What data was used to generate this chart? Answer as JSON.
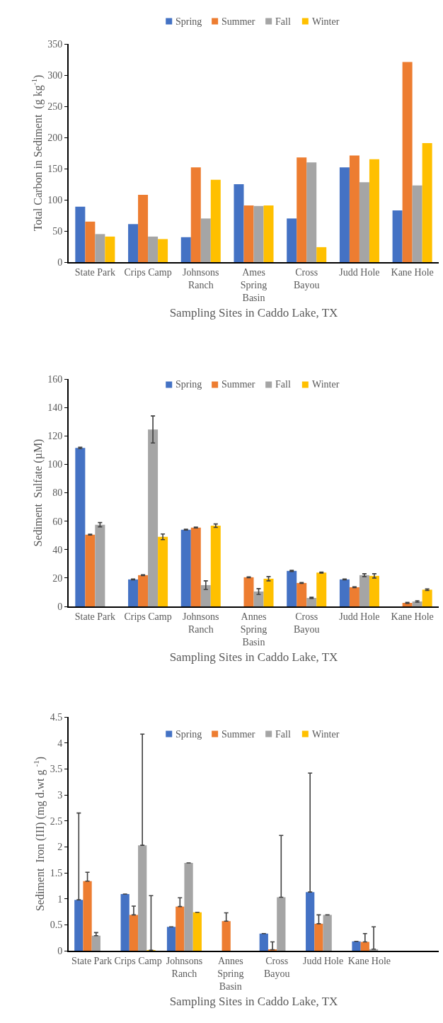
{
  "chart_data": [
    {
      "type": "bar",
      "xlabel": "Sampling Sites in Caddo Lake, TX",
      "ylabel": "Total Carbon in Sediment  (g kg$^{-1}$)",
      "categories": [
        "State Park",
        "Crips Camp",
        "Johnsons Ranch",
        "Ames Spring Basin",
        "Cross Bayou",
        "Judd Hole",
        "Kane Hole"
      ],
      "series": [
        {
          "name": "Spring",
          "color": "#4472c4",
          "values": [
            89,
            61,
            40,
            125,
            70,
            152,
            83
          ]
        },
        {
          "name": "Summer",
          "color": "#ed7d31",
          "values": [
            65,
            108,
            152,
            91,
            168,
            171,
            321
          ]
        },
        {
          "name": "Fall",
          "color": "#a5a5a5",
          "values": [
            45,
            41,
            70,
            90,
            160,
            128,
            123
          ]
        },
        {
          "name": "Winter",
          "color": "#ffc000",
          "values": [
            41,
            37,
            132,
            91,
            24,
            165,
            191
          ]
        }
      ],
      "ylim": [
        0,
        350
      ],
      "yticks": [
        0,
        50,
        100,
        150,
        200,
        250,
        300,
        350
      ],
      "grid": false,
      "legend": "top"
    },
    {
      "type": "bar",
      "xlabel": "Sampling Sites in Caddo Lake, TX",
      "ylabel": "Sediment  Sulfate (µM)",
      "categories": [
        "State Park",
        "Crips Camp",
        "Johnsons Ranch",
        "Annes Spring Basin",
        "Cross Bayou",
        "Judd Hole",
        "Kane Hole"
      ],
      "series": [
        {
          "name": "Spring",
          "color": "#4472c4",
          "values": [
            111.5,
            19,
            54,
            null,
            25,
            19,
            null
          ],
          "errors": [
            0.5,
            0.3,
            0.3,
            null,
            0.4,
            0.3,
            null
          ]
        },
        {
          "name": "Summer",
          "color": "#ed7d31",
          "values": [
            50.5,
            22,
            55.5,
            20.5,
            16.5,
            13.5,
            2.5
          ],
          "errors": [
            0.3,
            0.3,
            0.3,
            0.3,
            0.3,
            0.3,
            0.3
          ]
        },
        {
          "name": "Fall",
          "color": "#a5a5a5",
          "values": [
            57.5,
            124.5,
            15,
            10.5,
            6,
            22,
            3.5
          ],
          "errors": [
            1.5,
            9.5,
            3,
            2,
            0.4,
            1,
            0.5
          ]
        },
        {
          "name": "Winter",
          "color": "#ffc000",
          "values": [
            null,
            49,
            56.8,
            19.5,
            23.8,
            21.5,
            11.8
          ],
          "errors": [
            null,
            2,
            1.2,
            1.5,
            0.3,
            1.5,
            0.5
          ]
        }
      ],
      "ylim": [
        0,
        160
      ],
      "yticks": [
        0,
        20,
        40,
        60,
        80,
        100,
        120,
        140,
        160
      ],
      "grid": false,
      "legend": "top"
    },
    {
      "type": "bar",
      "xlabel": "Sampling Sites in Caddo Lake, TX",
      "ylabel": "Sediment  Iron (III) (mg d.wt g $^{-1}$)",
      "categories": [
        "State Park",
        "Crips Camp",
        "Johnsons Ranch",
        "Annes Spring Basin",
        "Cross Bayou",
        "Judd Hole",
        "Kane Hole",
        null
      ],
      "series": [
        {
          "name": "Spring",
          "color": "#4472c4",
          "values": [
            0.98,
            1.09,
            0.46,
            null,
            0.33,
            1.13,
            0.18,
            null
          ],
          "errors": [
            [
              0.98,
              2.65
            ],
            null,
            null,
            null,
            null,
            [
              1.13,
              3.42
            ],
            null,
            null
          ]
        },
        {
          "name": "Summer",
          "color": "#ed7d31",
          "values": [
            1.34,
            0.69,
            0.85,
            0.57,
            0.02,
            0.52,
            0.17,
            null
          ],
          "errors": [
            [
              1.34,
              1.51
            ],
            [
              0.69,
              0.86
            ],
            [
              0.85,
              1.02
            ],
            [
              0.57,
              0.73
            ],
            [
              0.02,
              0.17
            ],
            [
              0.52,
              0.69
            ],
            [
              0.17,
              0.33
            ],
            null
          ]
        },
        {
          "name": "Fall",
          "color": "#a5a5a5",
          "values": [
            0.29,
            2.03,
            1.69,
            null,
            1.03,
            0.69,
            0.03,
            null
          ],
          "errors": [
            [
              0.29,
              0.35
            ],
            [
              2.03,
              4.17
            ],
            null,
            null,
            [
              1.03,
              2.22
            ],
            null,
            [
              0.03,
              0.46
            ],
            null
          ]
        },
        {
          "name": "Winter",
          "color": "#ffc000",
          "values": [
            null,
            0.01,
            0.74,
            null,
            null,
            null,
            null,
            null
          ],
          "errors": [
            null,
            [
              0.01,
              1.06
            ],
            null,
            null,
            null,
            null,
            null,
            null
          ]
        }
      ],
      "ylim": [
        0,
        4.5
      ],
      "yticks": [
        0,
        0.5,
        1,
        1.5,
        2,
        2.5,
        3,
        3.5,
        4,
        4.5
      ],
      "grid": false,
      "legend": "top"
    }
  ]
}
